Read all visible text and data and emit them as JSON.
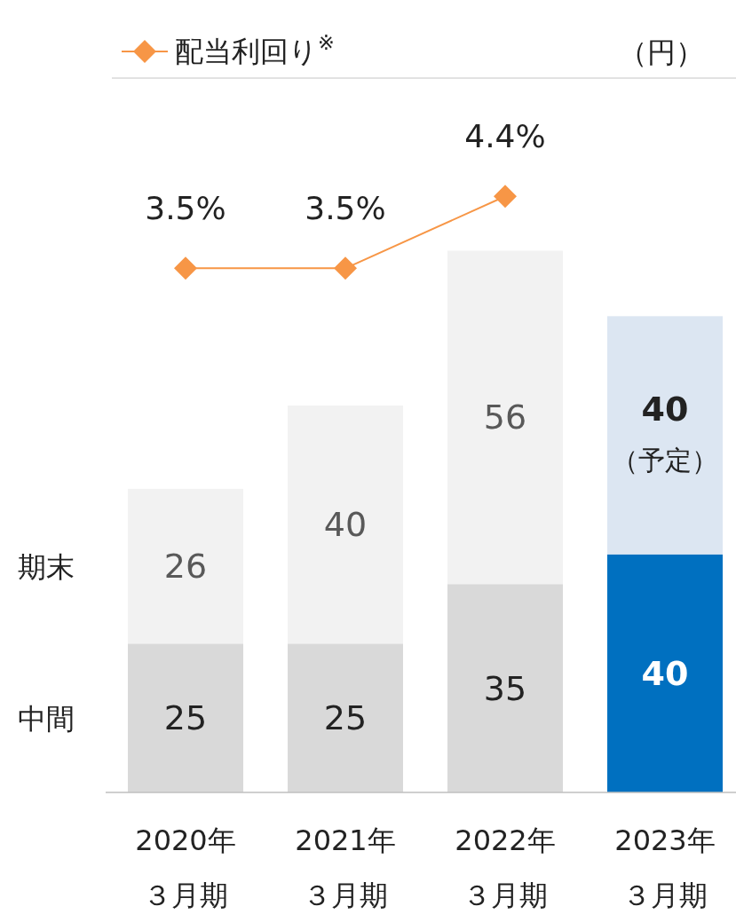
{
  "chart_data": {
    "type": "bar",
    "stacked": true,
    "ylabel": "（円）",
    "categories": [
      "2020年３月期",
      "2021年３月期",
      "2022年３月期",
      "2023年３月期"
    ],
    "ylim": [
      0,
      120
    ],
    "y2lim": [
      -3.06,
      5.88
    ],
    "legend": "top left",
    "data_labels": true,
    "series": [
      {
        "name": "中間",
        "colors": [
          "#d9d9d9",
          "#d9d9d9",
          "#d9d9d9",
          "#0070c0"
        ],
        "values": [
          25,
          25,
          35,
          40
        ]
      },
      {
        "name": "期末",
        "colors": [
          "#f2f2f2",
          "#f2f2f2",
          "#f2f2f2",
          "#dce6f2"
        ],
        "values": [
          26,
          40,
          56,
          40
        ]
      },
      {
        "name": "配当利回り$^{※}$",
        "type": "line",
        "axis": "y2",
        "color": "#f79646",
        "marker": "diamond",
        "values": [
          3.5,
          3.5,
          4.4,
          null
        ],
        "value_labels": [
          "3.5%",
          "3.5%",
          "4.4%",
          null
        ]
      }
    ],
    "annotations": [
      "（予定）"
    ]
  }
}
